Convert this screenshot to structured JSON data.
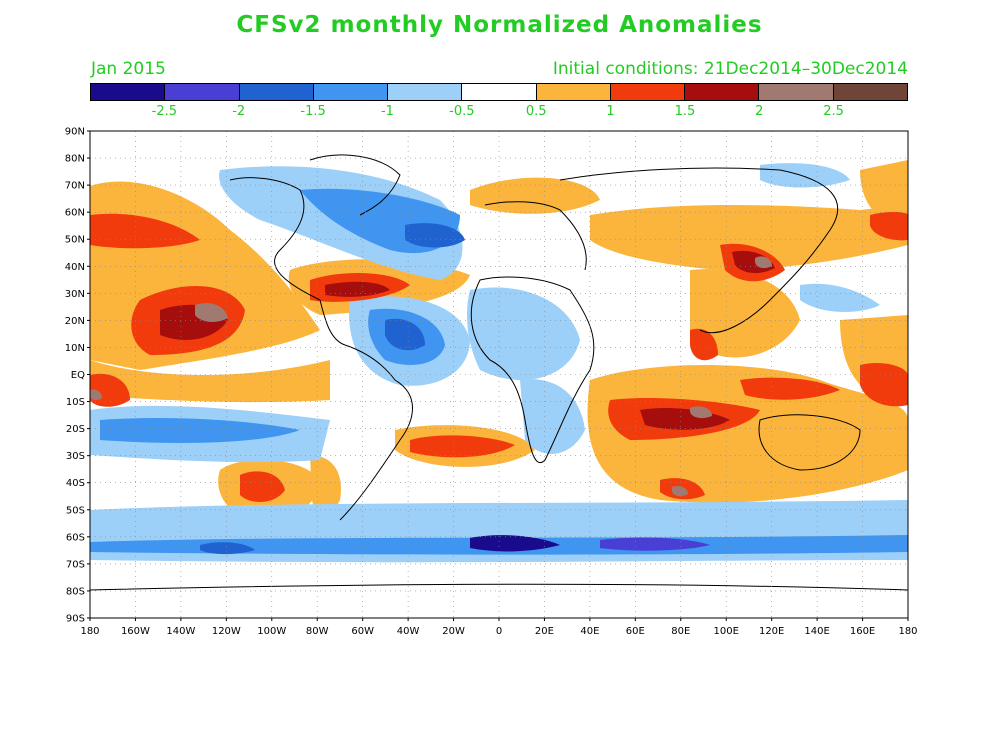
{
  "title": "CFSv2 monthly Normalized Anomalies",
  "subtitle_left": "Jan 2015",
  "subtitle_right": "Initial conditions: 21Dec2014–30Dec2014",
  "colorbar": {
    "colors": [
      "#1a0a8c",
      "#4a3fd4",
      "#1f62d0",
      "#3f95f0",
      "#9dd0f8",
      "#ffffff",
      "#fbb53c",
      "#f23b0c",
      "#a60d0d",
      "#a07a70",
      "#6e4537"
    ],
    "labels": [
      "-2.5",
      "-2",
      "-1.5",
      "-1",
      "-0.5",
      "0.5",
      "1",
      "1.5",
      "2",
      "2.5"
    ]
  },
  "axes": {
    "lat_labels": [
      "90N",
      "80N",
      "70N",
      "60N",
      "50N",
      "40N",
      "30N",
      "20N",
      "10N",
      "EQ",
      "10S",
      "20S",
      "30S",
      "40S",
      "50S",
      "60S",
      "70S",
      "80S",
      "90S"
    ],
    "lon_labels": [
      "180",
      "160W",
      "140W",
      "120W",
      "100W",
      "80W",
      "60W",
      "40W",
      "20W",
      "0",
      "20E",
      "40E",
      "60E",
      "80E",
      "100E",
      "120E",
      "140E",
      "160E",
      "180"
    ]
  }
}
